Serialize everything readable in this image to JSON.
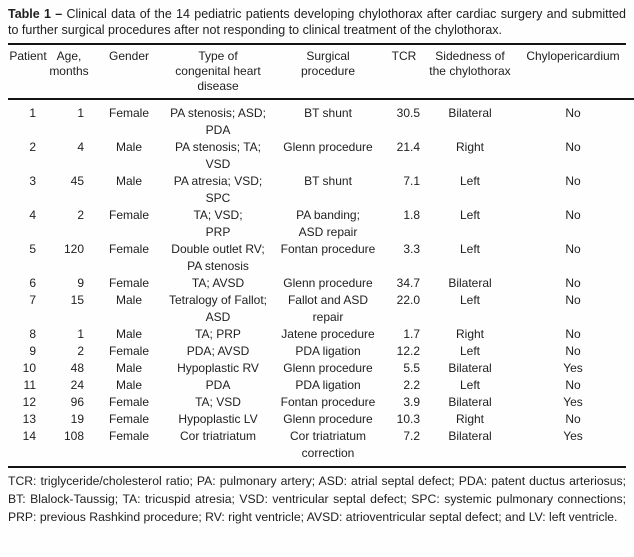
{
  "title": {
    "label": "Table 1 –",
    "text": "Clinical data of the 14 pediatric patients developing chylothorax after cardiac surgery and submitted to further surgical procedures after not responding to clinical treatment of the chylothorax."
  },
  "table": {
    "columns": [
      "Patient",
      "Age,\nmonths",
      "Gender",
      "Type of\ncongenital heart\ndisease",
      "Surgical\nprocedure",
      "TCR",
      "Sidedness of\nthe chylothorax",
      "Chylopericardium"
    ],
    "rows": [
      {
        "patient": "1",
        "age": "1",
        "gender": "Female",
        "disease": "PA stenosis; ASD;\nPDA",
        "procedure": "BT shunt",
        "tcr": "30.5",
        "sidedness": "Bilateral",
        "chylopericardium": "No"
      },
      {
        "patient": "2",
        "age": "4",
        "gender": "Male",
        "disease": "PA stenosis; TA;\nVSD",
        "procedure": "Glenn procedure",
        "tcr": "21.4",
        "sidedness": "Right",
        "chylopericardium": "No"
      },
      {
        "patient": "3",
        "age": "45",
        "gender": "Male",
        "disease": "PA atresia; VSD;\nSPC",
        "procedure": "BT shunt",
        "tcr": "7.1",
        "sidedness": "Left",
        "chylopericardium": "No"
      },
      {
        "patient": "4",
        "age": "2",
        "gender": "Female",
        "disease": "TA; VSD;\nPRP",
        "procedure": "PA banding;\nASD repair",
        "tcr": "1.8",
        "sidedness": "Left",
        "chylopericardium": "No"
      },
      {
        "patient": "5",
        "age": "120",
        "gender": "Female",
        "disease": "Double outlet RV;\nPA stenosis",
        "procedure": "Fontan procedure",
        "tcr": "3.3",
        "sidedness": "Left",
        "chylopericardium": "No"
      },
      {
        "patient": "6",
        "age": "9",
        "gender": "Female",
        "disease": "TA; AVSD",
        "procedure": "Glenn procedure",
        "tcr": "34.7",
        "sidedness": "Bilateral",
        "chylopericardium": "No"
      },
      {
        "patient": "7",
        "age": "15",
        "gender": "Male",
        "disease": "Tetralogy of Fallot;\nASD",
        "procedure": "Fallot and ASD\nrepair",
        "tcr": "22.0",
        "sidedness": "Left",
        "chylopericardium": "No"
      },
      {
        "patient": "8",
        "age": "1",
        "gender": "Male",
        "disease": "TA; PRP",
        "procedure": "Jatene procedure",
        "tcr": "1.7",
        "sidedness": "Right",
        "chylopericardium": "No"
      },
      {
        "patient": "9",
        "age": "2",
        "gender": "Female",
        "disease": "PDA; AVSD",
        "procedure": "PDA ligation",
        "tcr": "12.2",
        "sidedness": "Left",
        "chylopericardium": "No"
      },
      {
        "patient": "10",
        "age": "48",
        "gender": "Male",
        "disease": "Hypoplastic RV",
        "procedure": "Glenn procedure",
        "tcr": "5.5",
        "sidedness": "Bilateral",
        "chylopericardium": "Yes"
      },
      {
        "patient": "11",
        "age": "24",
        "gender": "Male",
        "disease": "PDA",
        "procedure": "PDA ligation",
        "tcr": "2.2",
        "sidedness": "Left",
        "chylopericardium": "No"
      },
      {
        "patient": "12",
        "age": "96",
        "gender": "Female",
        "disease": "TA; VSD",
        "procedure": "Fontan procedure",
        "tcr": "3.9",
        "sidedness": "Bilateral",
        "chylopericardium": "Yes"
      },
      {
        "patient": "13",
        "age": "19",
        "gender": "Female",
        "disease": "Hypoplastic LV",
        "procedure": "Glenn procedure",
        "tcr": "10.3",
        "sidedness": "Right",
        "chylopericardium": "No"
      },
      {
        "patient": "14",
        "age": "108",
        "gender": "Female",
        "disease": "Cor triatriatum",
        "procedure": "Cor triatriatum\ncorrection",
        "tcr": "7.2",
        "sidedness": "Bilateral",
        "chylopericardium": "Yes"
      }
    ]
  },
  "footnote": "TCR: triglyceride/cholesterol ratio; PA: pulmonary artery; ASD: atrial septal defect; PDA: patent ductus arteriosus; BT: Blalock-Taussig; TA: tricuspid atresia; VSD: ventricular septal defect; SPC: systemic pulmonary connections; PRP: previous Rashkind procedure; RV: right ventricle; AVSD: atrioventricular septal defect; and LV: left ventricle."
}
